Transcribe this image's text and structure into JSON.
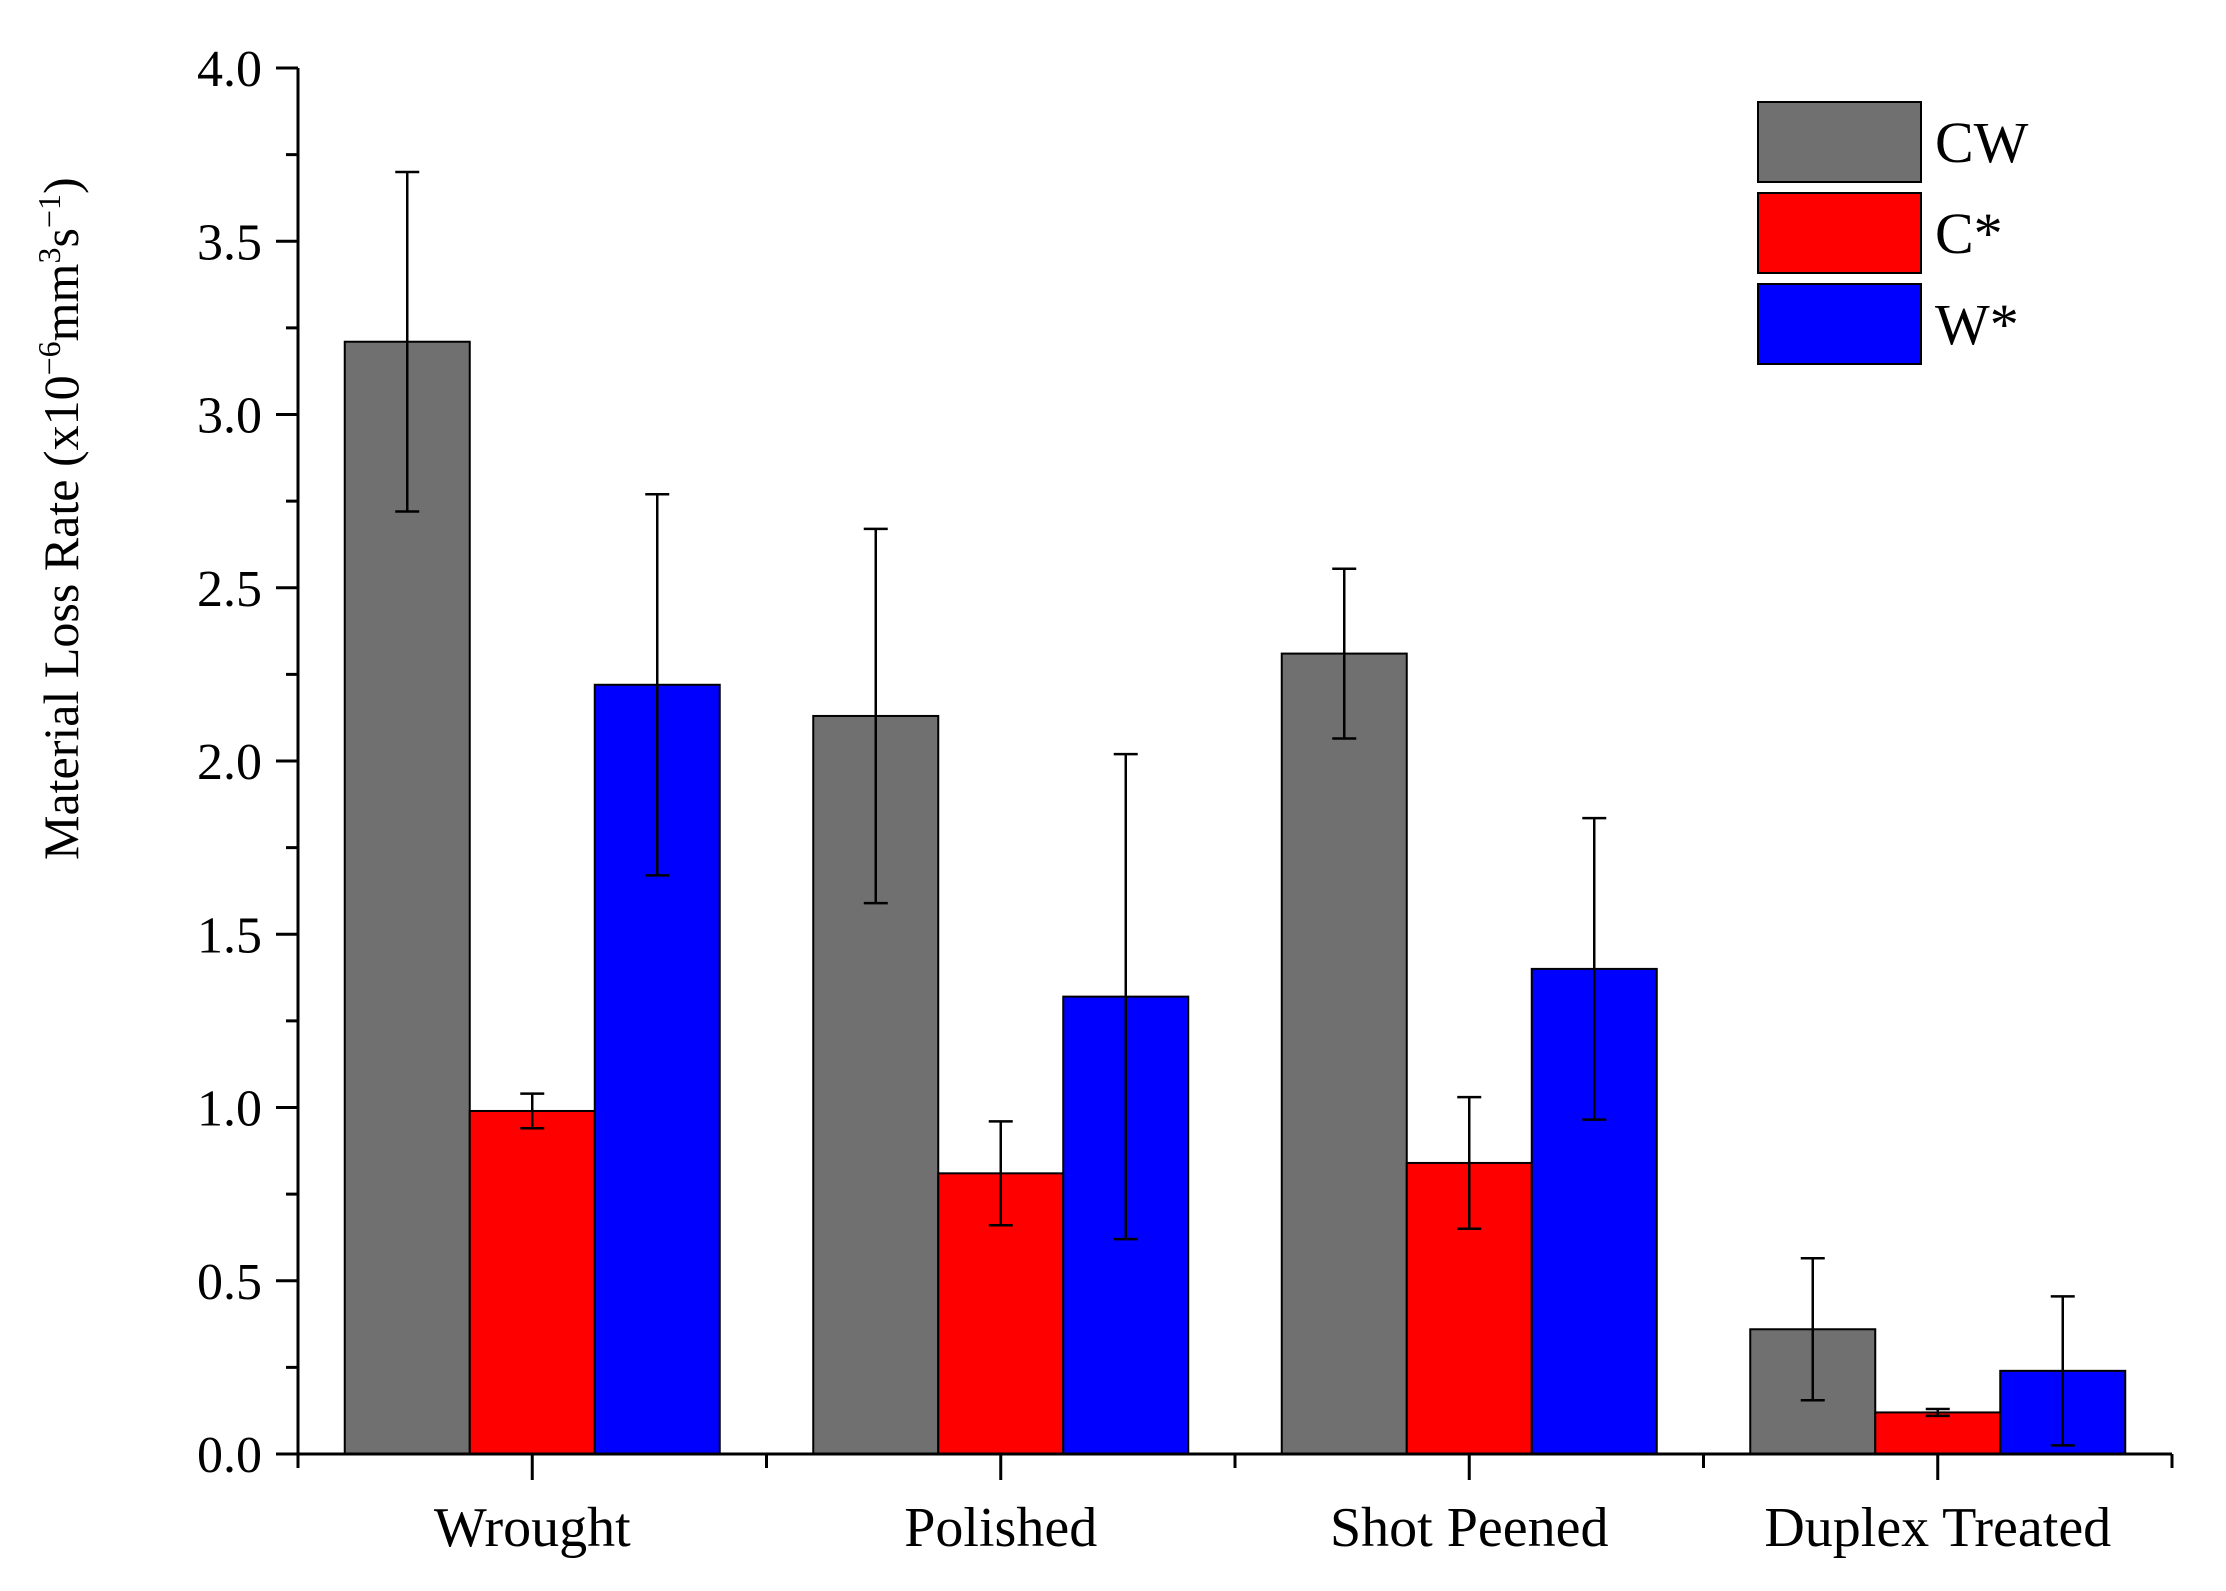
{
  "chart_data": {
    "type": "bar",
    "title": "",
    "xlabel": "",
    "ylabel": "Material Loss Rate (x10",
    "ylabel_sup1": "−6",
    "ylabel_mid": "mm",
    "ylabel_sup2": "3",
    "ylabel_mid2": "s",
    "ylabel_sup3": "−1",
    "ylabel_end": ")",
    "ylim": [
      0,
      4.0
    ],
    "yticks": [
      "0.0",
      "0.5",
      "1.0",
      "1.5",
      "2.0",
      "2.5",
      "3.0",
      "3.5",
      "4.0"
    ],
    "categories": [
      "Wrought",
      "Polished",
      "Shot Peened",
      "Duplex Treated"
    ],
    "series": [
      {
        "name": "CW",
        "color": "#707070",
        "values": [
          3.21,
          2.13,
          2.31,
          0.36
        ],
        "errors": [
          0.49,
          0.54,
          0.245,
          0.205
        ]
      },
      {
        "name": "C*",
        "color": "#ff0000",
        "values": [
          0.99,
          0.81,
          0.84,
          0.12
        ],
        "errors": [
          0.05,
          0.15,
          0.19,
          0.01
        ]
      },
      {
        "name": "W*",
        "color": "#0000ff",
        "values": [
          2.22,
          1.32,
          1.4,
          0.24
        ],
        "errors": [
          0.55,
          0.7,
          0.435,
          0.215
        ]
      }
    ],
    "legend": "top-right"
  }
}
